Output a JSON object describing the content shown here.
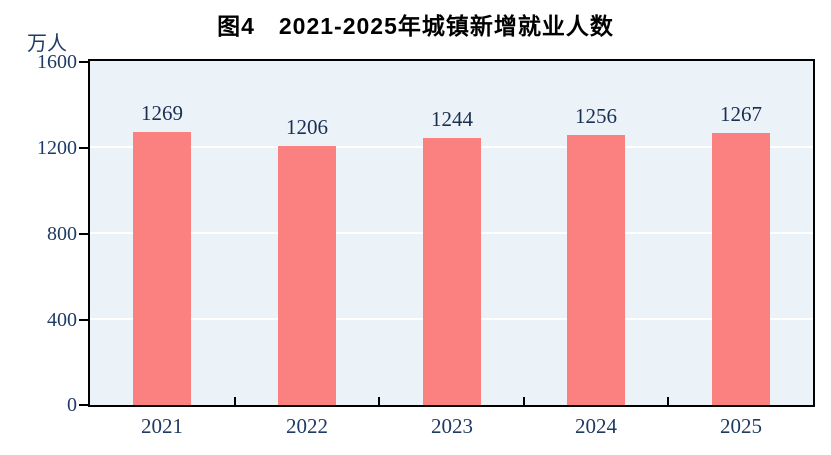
{
  "title": "图4　2021-2025年城镇新增就业人数",
  "chart_data": {
    "type": "bar",
    "title": "图4　2021-2025年城镇新增就业人数",
    "unit_label": "万人",
    "xlabel": "",
    "ylabel": "万人",
    "categories": [
      "2021",
      "2022",
      "2023",
      "2024",
      "2025"
    ],
    "values": [
      1269,
      1206,
      1244,
      1256,
      1267
    ],
    "ylim": [
      0,
      1600
    ],
    "yticks": [
      0,
      400,
      800,
      1200,
      1600
    ],
    "grid": "horizontal",
    "legend_position": "none",
    "colors": {
      "bar": "#fb8080",
      "plot_background": "#ecf3f8",
      "gridline": "#ffffff",
      "axis_text": "#1f3b63",
      "value_text": "#1a2f52",
      "title_text": "#000000",
      "border": "#000000"
    }
  }
}
